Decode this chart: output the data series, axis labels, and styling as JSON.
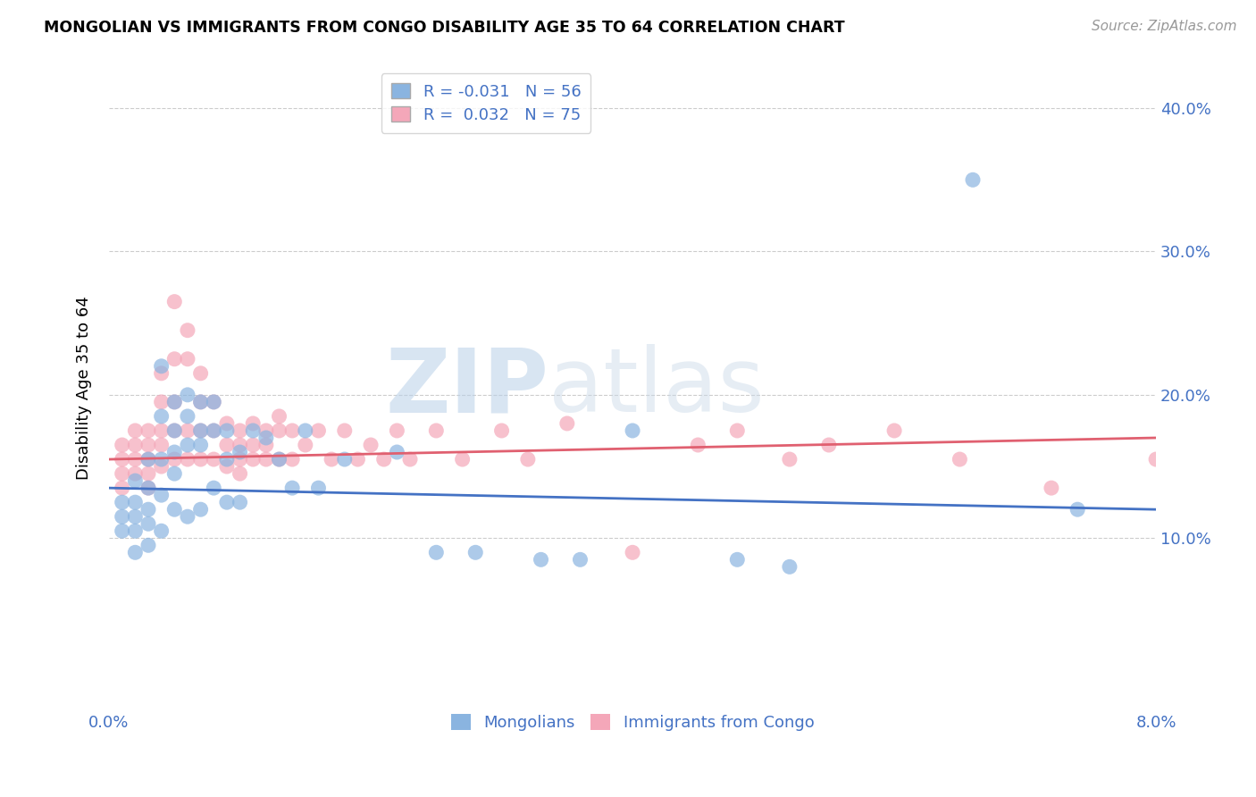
{
  "title": "MONGOLIAN VS IMMIGRANTS FROM CONGO DISABILITY AGE 35 TO 64 CORRELATION CHART",
  "source": "Source: ZipAtlas.com",
  "ylabel": "Disability Age 35 to 64",
  "xlim": [
    0.0,
    0.08
  ],
  "ylim": [
    -0.02,
    0.43
  ],
  "blue_R": "-0.031",
  "blue_N": "56",
  "pink_R": "0.032",
  "pink_N": "75",
  "blue_color": "#8ab4e0",
  "pink_color": "#f4a7b9",
  "blue_line_color": "#4472c4",
  "pink_line_color": "#e06070",
  "legend_label_blue": "Mongolians",
  "legend_label_pink": "Immigrants from Congo",
  "watermark_zip": "ZIP",
  "watermark_atlas": "atlas",
  "blue_scatter_x": [
    0.001,
    0.001,
    0.001,
    0.002,
    0.002,
    0.002,
    0.002,
    0.002,
    0.003,
    0.003,
    0.003,
    0.003,
    0.003,
    0.004,
    0.004,
    0.004,
    0.004,
    0.004,
    0.005,
    0.005,
    0.005,
    0.005,
    0.005,
    0.006,
    0.006,
    0.006,
    0.006,
    0.007,
    0.007,
    0.007,
    0.007,
    0.008,
    0.008,
    0.008,
    0.009,
    0.009,
    0.009,
    0.01,
    0.01,
    0.011,
    0.012,
    0.013,
    0.014,
    0.015,
    0.016,
    0.018,
    0.022,
    0.025,
    0.028,
    0.033,
    0.036,
    0.04,
    0.048,
    0.052,
    0.066,
    0.074
  ],
  "blue_scatter_y": [
    0.125,
    0.115,
    0.105,
    0.14,
    0.125,
    0.115,
    0.105,
    0.09,
    0.155,
    0.135,
    0.12,
    0.11,
    0.095,
    0.22,
    0.185,
    0.155,
    0.13,
    0.105,
    0.195,
    0.175,
    0.16,
    0.145,
    0.12,
    0.2,
    0.185,
    0.165,
    0.115,
    0.195,
    0.175,
    0.165,
    0.12,
    0.195,
    0.175,
    0.135,
    0.175,
    0.155,
    0.125,
    0.16,
    0.125,
    0.175,
    0.17,
    0.155,
    0.135,
    0.175,
    0.135,
    0.155,
    0.16,
    0.09,
    0.09,
    0.085,
    0.085,
    0.175,
    0.085,
    0.08,
    0.35,
    0.12
  ],
  "pink_scatter_x": [
    0.001,
    0.001,
    0.001,
    0.001,
    0.002,
    0.002,
    0.002,
    0.002,
    0.003,
    0.003,
    0.003,
    0.003,
    0.003,
    0.004,
    0.004,
    0.004,
    0.004,
    0.004,
    0.005,
    0.005,
    0.005,
    0.005,
    0.005,
    0.006,
    0.006,
    0.006,
    0.006,
    0.007,
    0.007,
    0.007,
    0.007,
    0.008,
    0.008,
    0.008,
    0.009,
    0.009,
    0.009,
    0.01,
    0.01,
    0.01,
    0.01,
    0.011,
    0.011,
    0.011,
    0.012,
    0.012,
    0.012,
    0.013,
    0.013,
    0.013,
    0.014,
    0.014,
    0.015,
    0.016,
    0.017,
    0.018,
    0.019,
    0.02,
    0.021,
    0.022,
    0.023,
    0.025,
    0.027,
    0.03,
    0.032,
    0.035,
    0.04,
    0.045,
    0.048,
    0.052,
    0.055,
    0.06,
    0.065,
    0.072,
    0.08
  ],
  "pink_scatter_y": [
    0.165,
    0.155,
    0.145,
    0.135,
    0.175,
    0.165,
    0.155,
    0.145,
    0.175,
    0.165,
    0.155,
    0.145,
    0.135,
    0.215,
    0.195,
    0.175,
    0.165,
    0.15,
    0.265,
    0.225,
    0.195,
    0.175,
    0.155,
    0.245,
    0.225,
    0.175,
    0.155,
    0.215,
    0.195,
    0.175,
    0.155,
    0.195,
    0.175,
    0.155,
    0.18,
    0.165,
    0.15,
    0.175,
    0.165,
    0.155,
    0.145,
    0.18,
    0.165,
    0.155,
    0.175,
    0.165,
    0.155,
    0.185,
    0.175,
    0.155,
    0.175,
    0.155,
    0.165,
    0.175,
    0.155,
    0.175,
    0.155,
    0.165,
    0.155,
    0.175,
    0.155,
    0.175,
    0.155,
    0.175,
    0.155,
    0.18,
    0.09,
    0.165,
    0.175,
    0.155,
    0.165,
    0.175,
    0.155,
    0.135,
    0.155
  ]
}
